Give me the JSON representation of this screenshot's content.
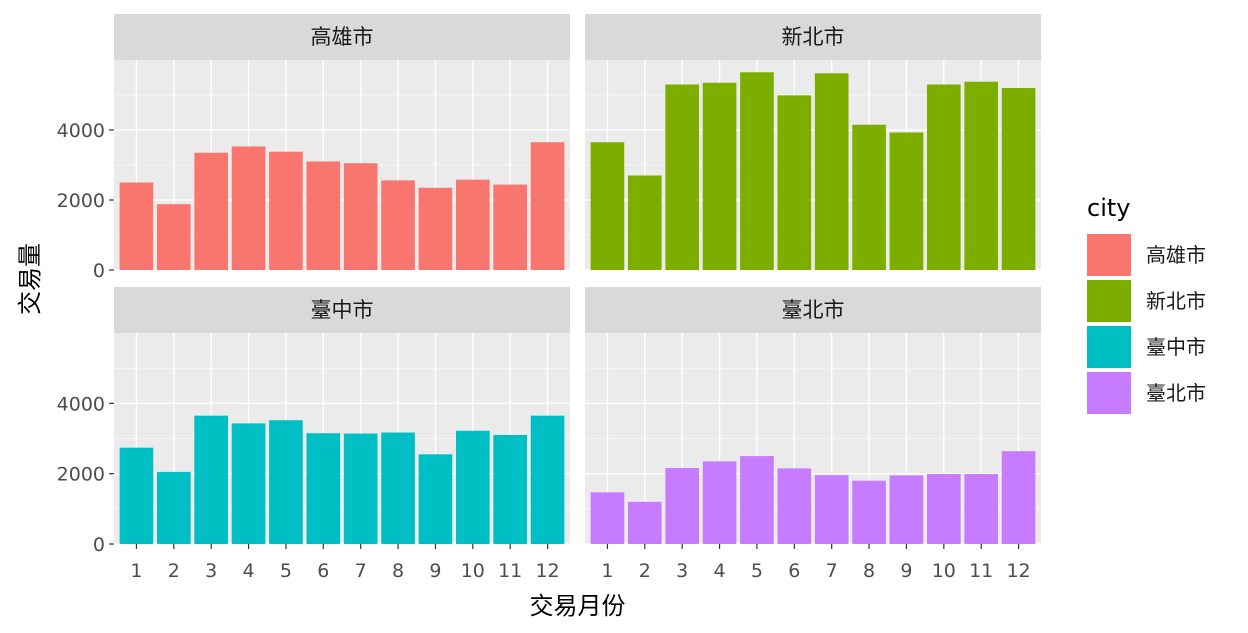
{
  "chart_data": {
    "type": "bar",
    "xlabel": "交易月份",
    "ylabel": "交易量",
    "x": [
      "1",
      "2",
      "3",
      "4",
      "5",
      "6",
      "7",
      "8",
      "9",
      "10",
      "11",
      "12"
    ],
    "y_ticks": [
      "0",
      "2000",
      "4000"
    ],
    "ylim": [
      0,
      6000
    ],
    "grid": true,
    "legend": {
      "title": "city",
      "position": "right",
      "entries": [
        {
          "label": "高雄市",
          "color": "#F8766D"
        },
        {
          "label": "新北市",
          "color": "#7CAE00"
        },
        {
          "label": "臺中市",
          "color": "#00BFC4"
        },
        {
          "label": "臺北市",
          "color": "#C77CFF"
        }
      ]
    },
    "panels": [
      {
        "strip": "高雄市",
        "color": "#F8766D",
        "values": [
          2500,
          1880,
          3350,
          3530,
          3380,
          3100,
          3050,
          2560,
          2350,
          2580,
          2440,
          3650
        ]
      },
      {
        "strip": "新北市",
        "color": "#7CAE00",
        "values": [
          3650,
          2700,
          5300,
          5350,
          5650,
          4990,
          5620,
          4150,
          3930,
          5300,
          5380,
          5200
        ]
      },
      {
        "strip": "臺中市",
        "color": "#00BFC4",
        "values": [
          2740,
          2050,
          3650,
          3430,
          3520,
          3150,
          3140,
          3170,
          2550,
          3220,
          3100,
          3650
        ]
      },
      {
        "strip": "臺北市",
        "color": "#C77CFF",
        "values": [
          1470,
          1200,
          2160,
          2350,
          2500,
          2150,
          1960,
          1800,
          1950,
          1990,
          1990,
          2640
        ]
      }
    ]
  }
}
